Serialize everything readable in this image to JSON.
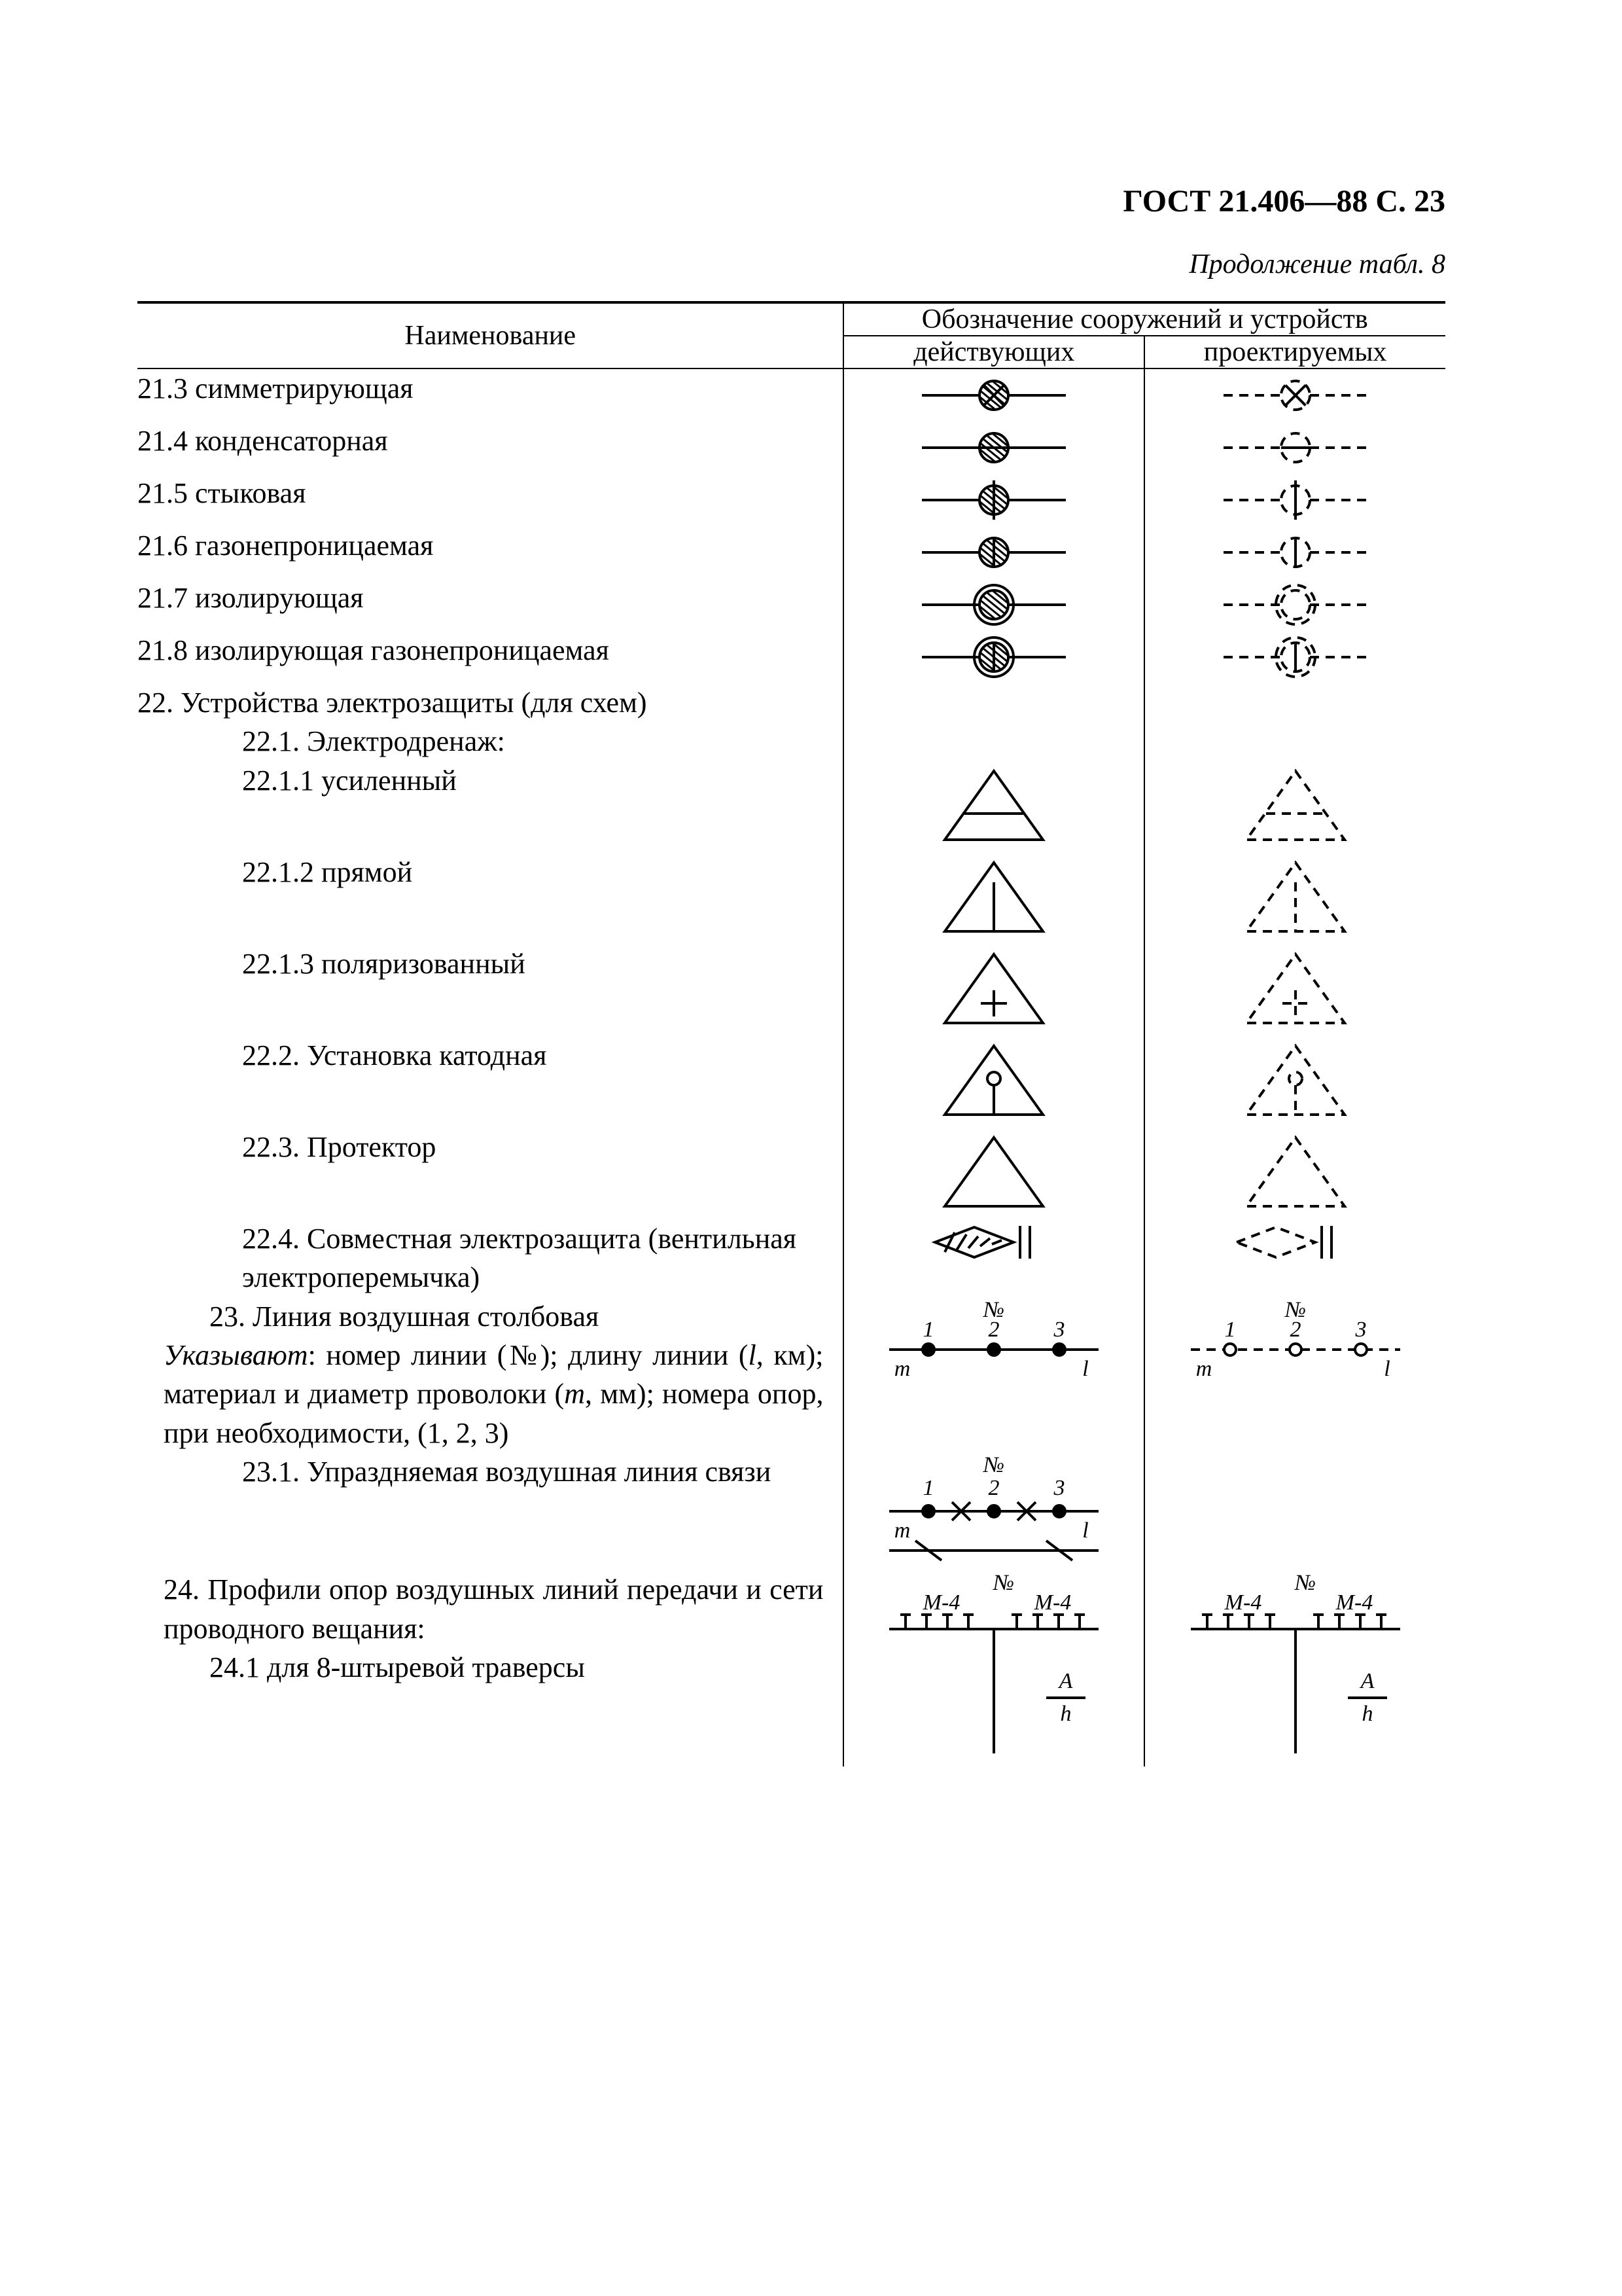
{
  "header": {
    "doc": "ГОСТ 21.406—88",
    "page": "С. 23",
    "caption": "Продолжение табл. 8"
  },
  "table_head": {
    "name": "Наименование",
    "group": "Обозначение сооружений и устройств",
    "existing": "действующих",
    "projected": "проектируемых"
  },
  "rows": [
    {
      "t": "21.3 симметрирующая",
      "svg": "sym213"
    },
    {
      "t": "21.4 конденсаторная",
      "svg": "sym214"
    },
    {
      "t": "21.5 стыковая",
      "svg": "sym215"
    },
    {
      "t": "21.6 газонепроницаемая",
      "svg": "sym216"
    },
    {
      "t": "21.7 изолирующая",
      "svg": "sym217"
    },
    {
      "t": "21.8 изолирующая газонепроницаемая",
      "svg": "sym218"
    },
    {
      "t": "22. Устройства электрозащиты (для схем)",
      "svg": "none"
    },
    {
      "t": "22.1. Электродренаж:",
      "svg": "none",
      "pad": "sub1"
    },
    {
      "t": "22.1.1 усиленный",
      "svg": "tri_hbar",
      "pad": "sub1"
    },
    {
      "t": "22.1.2 прямой",
      "svg": "tri_vbar",
      "pad": "sub1"
    },
    {
      "t": "22.1.3 поляризованный",
      "svg": "tri_plus",
      "pad": "sub1"
    },
    {
      "t": "22.2. Установка катодная",
      "svg": "tri_key",
      "pad": "sub1"
    },
    {
      "t": "22.3. Протектор",
      "svg": "tri_plain",
      "pad": "sub1"
    },
    {
      "t": "22.4. Совместная электрозащита (вентильная электроперемычка)",
      "svg": "joint",
      "pad": "sub1"
    },
    {
      "t": "23. Линия воздушная столбовая",
      "svg": "line23",
      "pad": "sub1",
      "html": "<span class='it'>Указывают</span>: номер линии (№); длину линии (<span class='it'>l</span>, км); материал и диаметр проволоки (<span class='it'>m</span>, мм); номера опор, при необходимости, (1, 2, 3)",
      "just": true
    },
    {
      "t": "23.1. Упраздняемая воздушная линия связи",
      "svg": "line231",
      "pad": "sub1",
      "single": true
    },
    {
      "t": "24. Профили опор воздушных линий передачи и сети проводного вещания:",
      "svg": "prof24",
      "just": true,
      "extra": "24.1 для 8-штыревой траверсы"
    }
  ],
  "style": {
    "stroke": "#000000",
    "sw": 4,
    "hatch_sw": 3,
    "dash": "14,10",
    "font": "italic 36px 'Times New Roman'"
  }
}
